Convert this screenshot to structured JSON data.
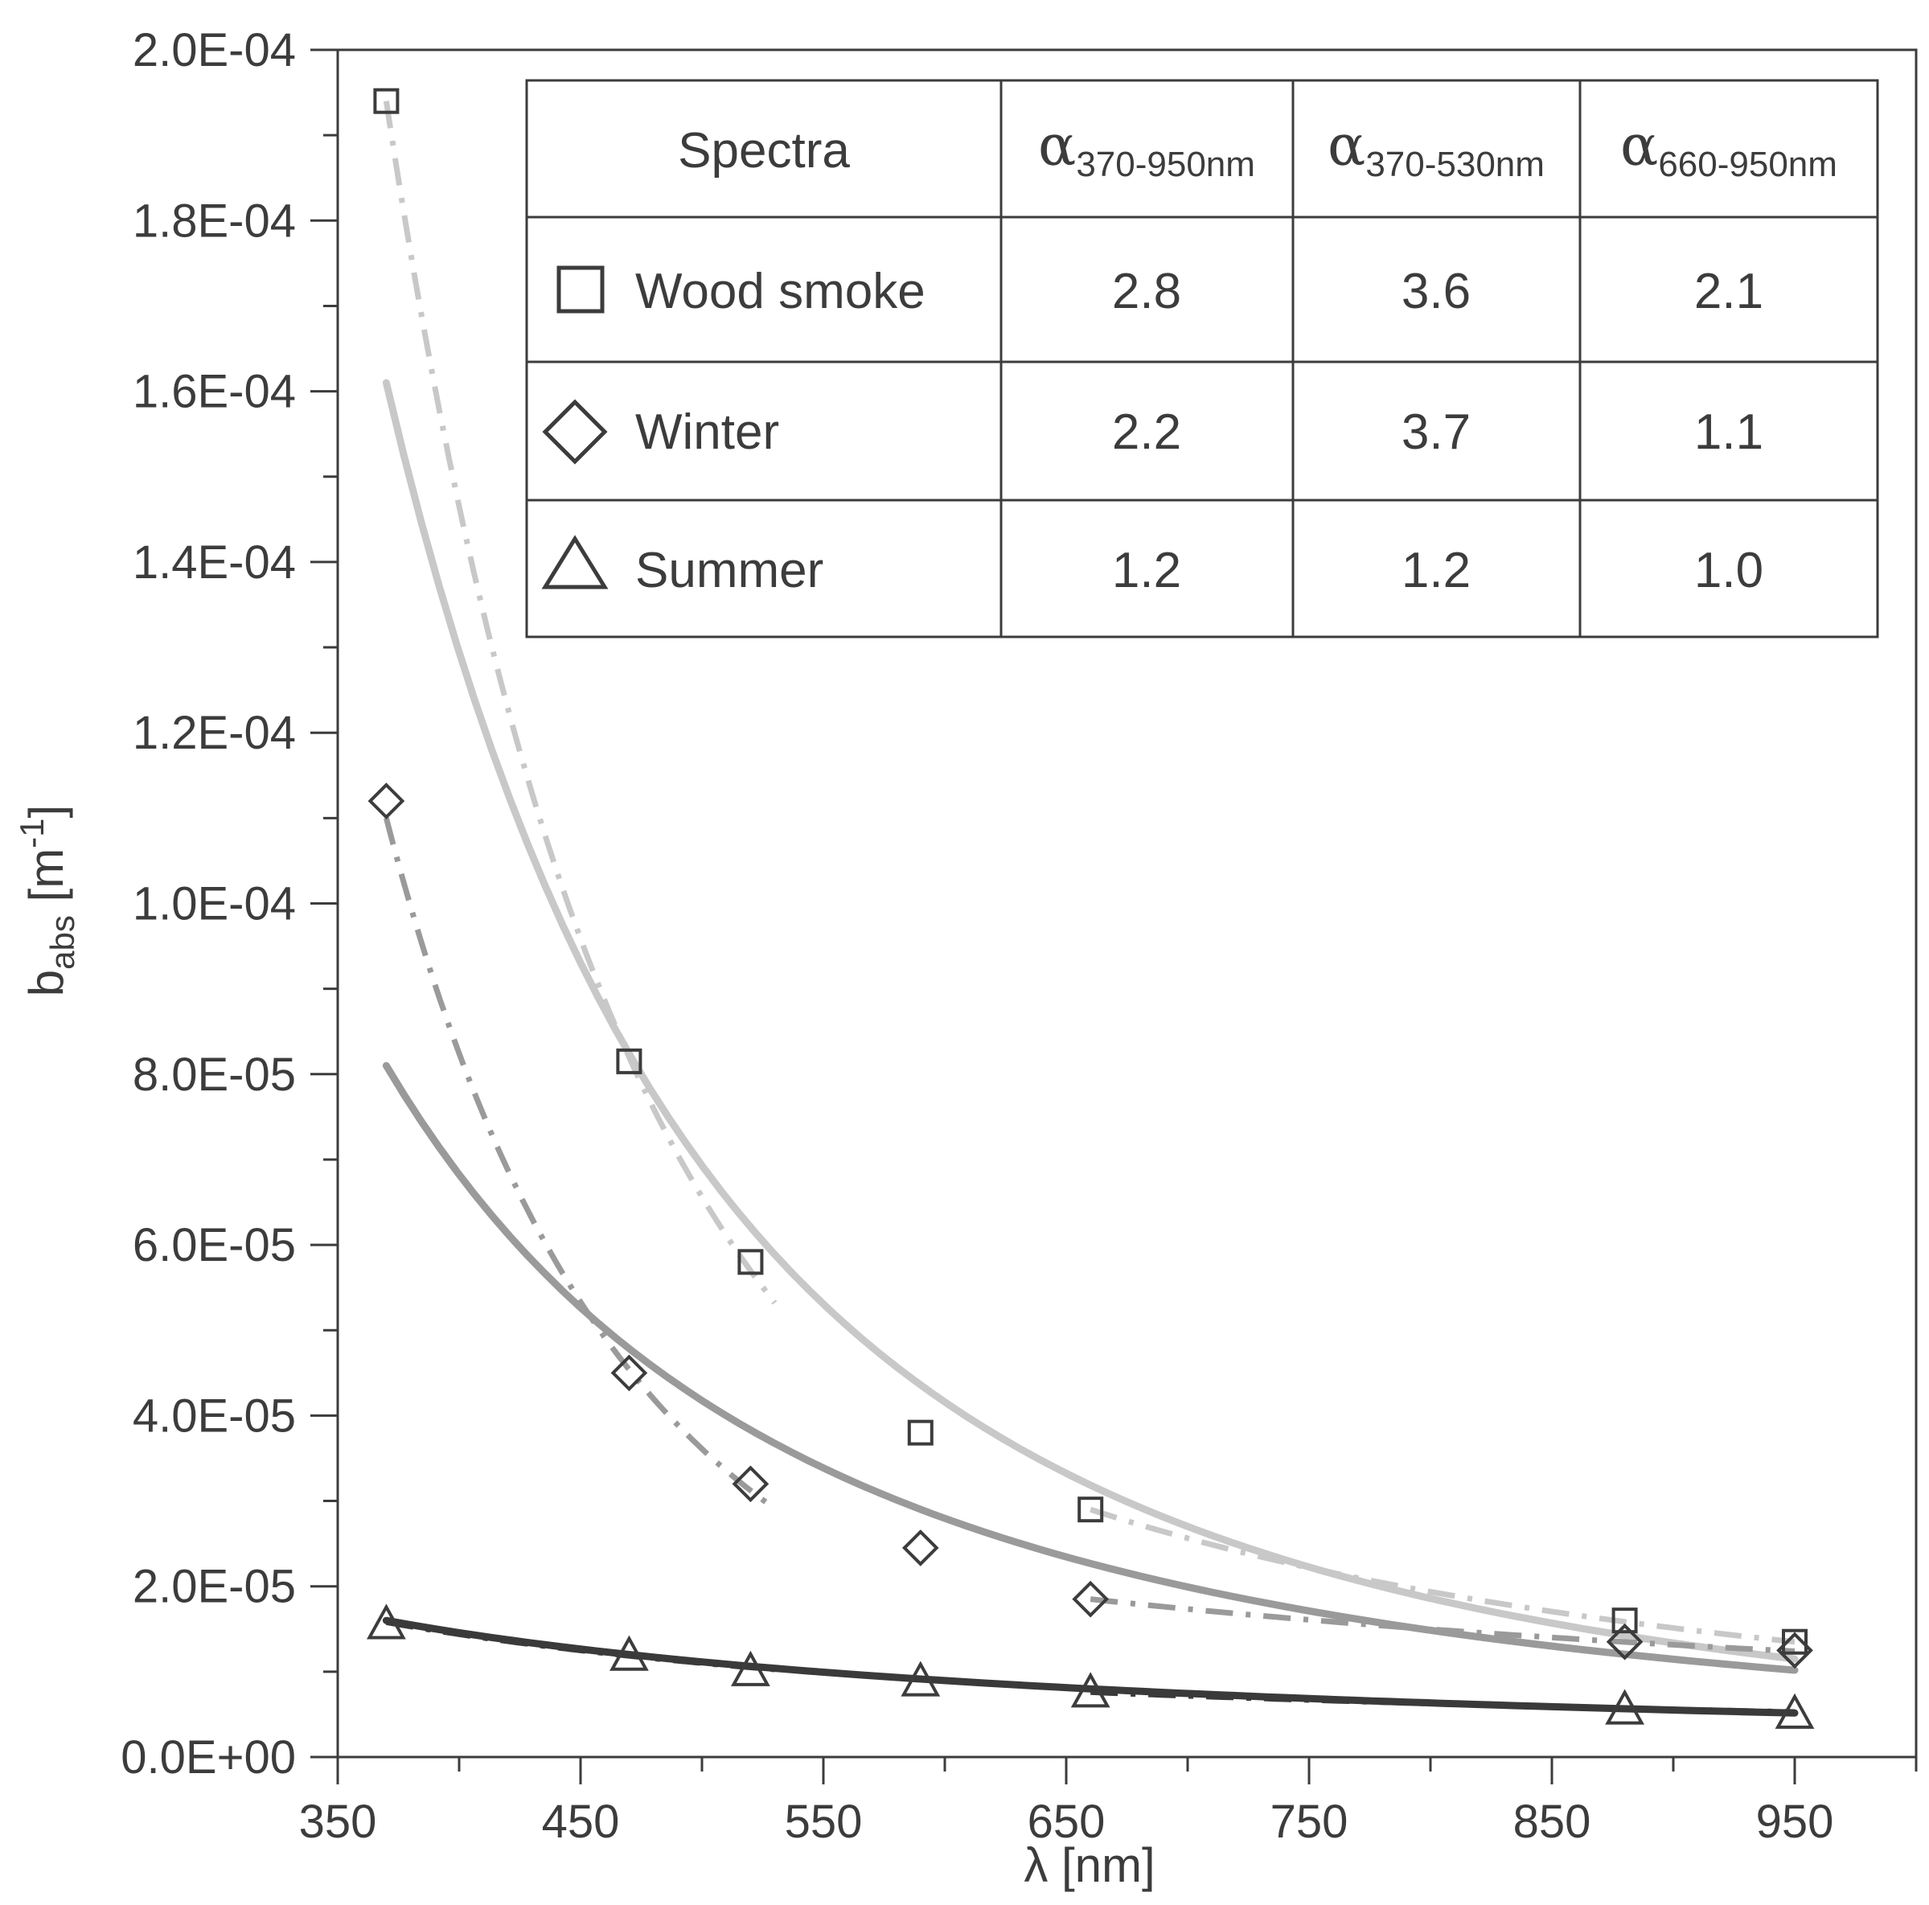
{
  "chart_data": {
    "type": "scatter",
    "xlabel": "λ [nm]",
    "ylabel": "babs [m-1]",
    "xlim": [
      350,
      1000
    ],
    "ylim": [
      0,
      0.0002
    ],
    "x_ticks": [
      "350",
      "450",
      "550",
      "650",
      "750",
      "850",
      "950"
    ],
    "y_ticks": [
      "0.0E+00",
      "2.0E-05",
      "4.0E-05",
      "6.0E-05",
      "8.0E-05",
      "1.0E-04",
      "1.2E-04",
      "1.4E-04",
      "1.6E-04",
      "1.8E-04",
      "2.0E-04"
    ],
    "grid": false,
    "series": [
      {
        "name": "Wood smoke",
        "marker": "square",
        "color": "#c8c8c8",
        "x": [
          370,
          470,
          520,
          590,
          660,
          880,
          950
        ],
        "y": [
          0.000194,
          8.15e-05,
          5.8e-05,
          3.8e-05,
          2.9e-05,
          1.6e-05,
          1.35e-05
        ],
        "fit_370_950": {
          "alpha": 2.8,
          "y_at_370": 0.000161,
          "y_at_950": 1.16e-05
        },
        "fit_370_530": {
          "alpha": 3.6,
          "y_at_370": 0.000194
        },
        "fit_660_950": {
          "alpha": 2.1,
          "y_at_660": 2.9e-05
        }
      },
      {
        "name": "Winter",
        "marker": "diamond",
        "color": "#9a9a9a",
        "x": [
          370,
          470,
          520,
          590,
          660,
          880,
          950
        ],
        "y": [
          0.000112,
          4.5e-05,
          3.2e-05,
          2.45e-05,
          1.85e-05,
          1.35e-05,
          1.25e-05
        ],
        "fit_370_950": {
          "alpha": 2.2,
          "y_at_370": 8.1e-05,
          "y_at_950": 1e-05
        },
        "fit_370_530": {
          "alpha": 3.7,
          "y_at_370": 0.00011
        },
        "fit_660_950": {
          "alpha": 1.1,
          "y_at_660": 1.85e-05
        }
      },
      {
        "name": "Summer",
        "marker": "triangle",
        "color": "#3a3a3a",
        "x": [
          370,
          470,
          520,
          590,
          660,
          880,
          950
        ],
        "y": [
          1.55e-05,
          1.18e-05,
          1e-05,
          8.8e-06,
          7.5e-06,
          5.5e-06,
          5e-06
        ],
        "fit_370_950": {
          "alpha": 1.2,
          "y_at_370": 1.6e-05,
          "y_at_950": 5.5e-06
        },
        "fit_370_530": {
          "alpha": 1.2,
          "y_at_370": 1.58e-05
        },
        "fit_660_950": {
          "alpha": 1.0,
          "y_at_660": 7.6e-06
        }
      }
    ],
    "table": {
      "header": {
        "spectra": "Spectra",
        "alpha_symbol": "α",
        "col1_sub": "370-950nm",
        "col2_sub": "370-530nm",
        "col3_sub": "660-950nm"
      },
      "rows": [
        {
          "label": "Wood smoke",
          "marker": "square",
          "a1": "2.8",
          "a2": "3.6",
          "a3": "2.1"
        },
        {
          "label": "Winter",
          "marker": "diamond",
          "a1": "2.2",
          "a2": "3.7",
          "a3": "1.1"
        },
        {
          "label": "Summer",
          "marker": "triangle",
          "a1": "1.2",
          "a2": "1.2",
          "a3": "1.0"
        }
      ]
    }
  }
}
